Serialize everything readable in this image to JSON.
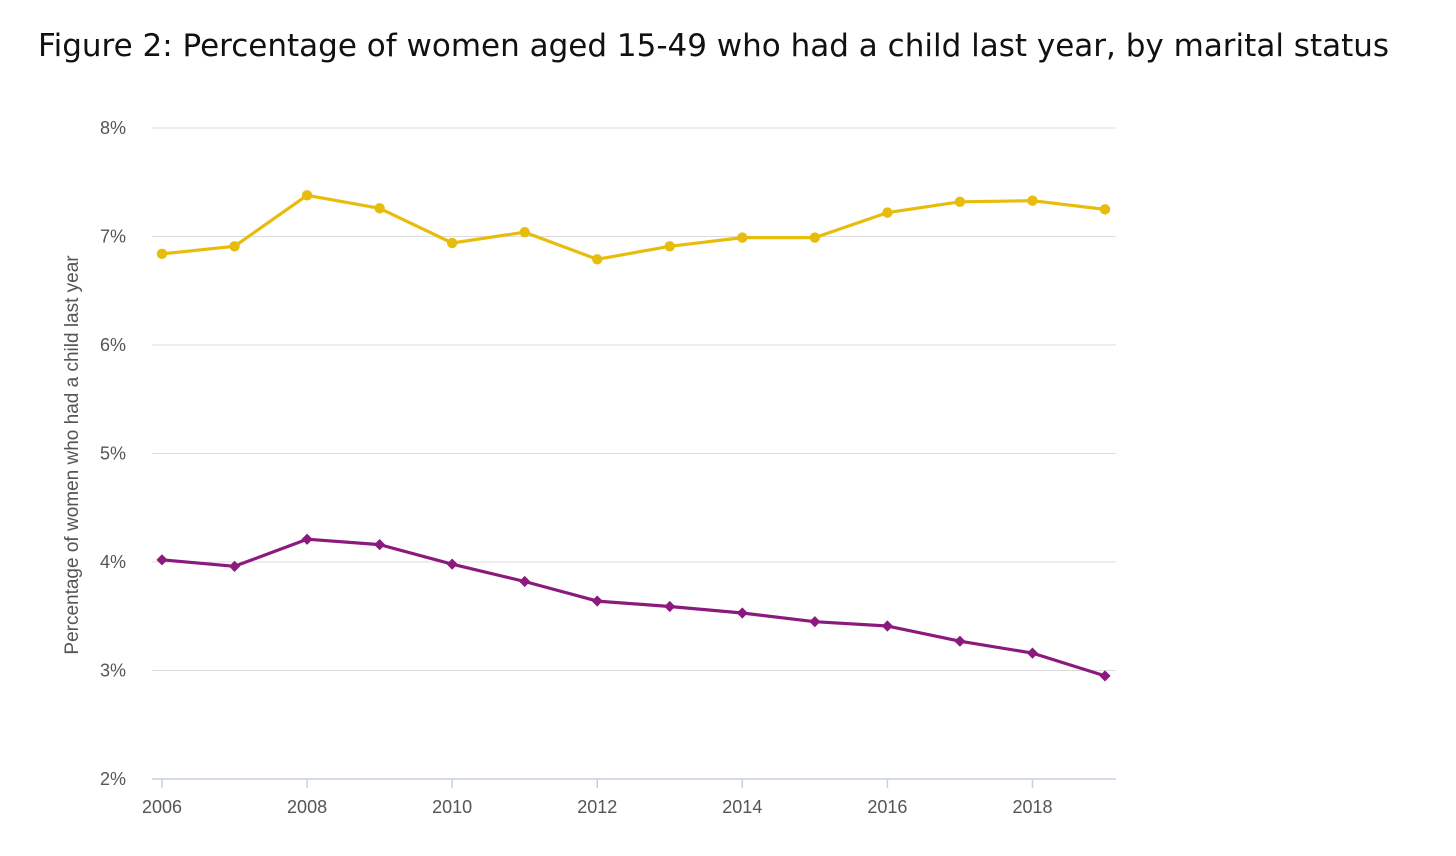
{
  "figure": {
    "title": "Figure 2: Percentage of women aged 15-49 who had a child last year, by marital status"
  },
  "chart_data": {
    "type": "line",
    "title": "Figure 2: Percentage of women aged 15-49 who had a child last year, by marital status",
    "xlabel": "",
    "ylabel": "Percentage of women who had a child last year",
    "x": [
      2006,
      2007,
      2008,
      2009,
      2010,
      2011,
      2012,
      2013,
      2014,
      2015,
      2016,
      2017,
      2018,
      2019
    ],
    "x_tick_labels": [
      "2006",
      "2008",
      "2010",
      "2012",
      "2014",
      "2016",
      "2018"
    ],
    "y_tick_labels": [
      "2%",
      "3%",
      "4%",
      "5%",
      "6%",
      "7%",
      "8%"
    ],
    "ylim": [
      2,
      8
    ],
    "xlim": [
      2006,
      2019
    ],
    "grid": true,
    "series": [
      {
        "color": "#E8BC0C",
        "marker": "circle",
        "values": [
          6.84,
          6.91,
          7.38,
          7.26,
          6.94,
          7.04,
          6.79,
          6.91,
          6.99,
          6.99,
          7.22,
          7.32,
          7.33,
          7.25
        ]
      },
      {
        "color": "#8B1A7E",
        "marker": "diamond",
        "values": [
          4.02,
          3.96,
          4.21,
          4.16,
          3.98,
          3.82,
          3.64,
          3.59,
          3.53,
          3.45,
          3.41,
          3.27,
          3.16,
          2.95
        ]
      }
    ]
  }
}
